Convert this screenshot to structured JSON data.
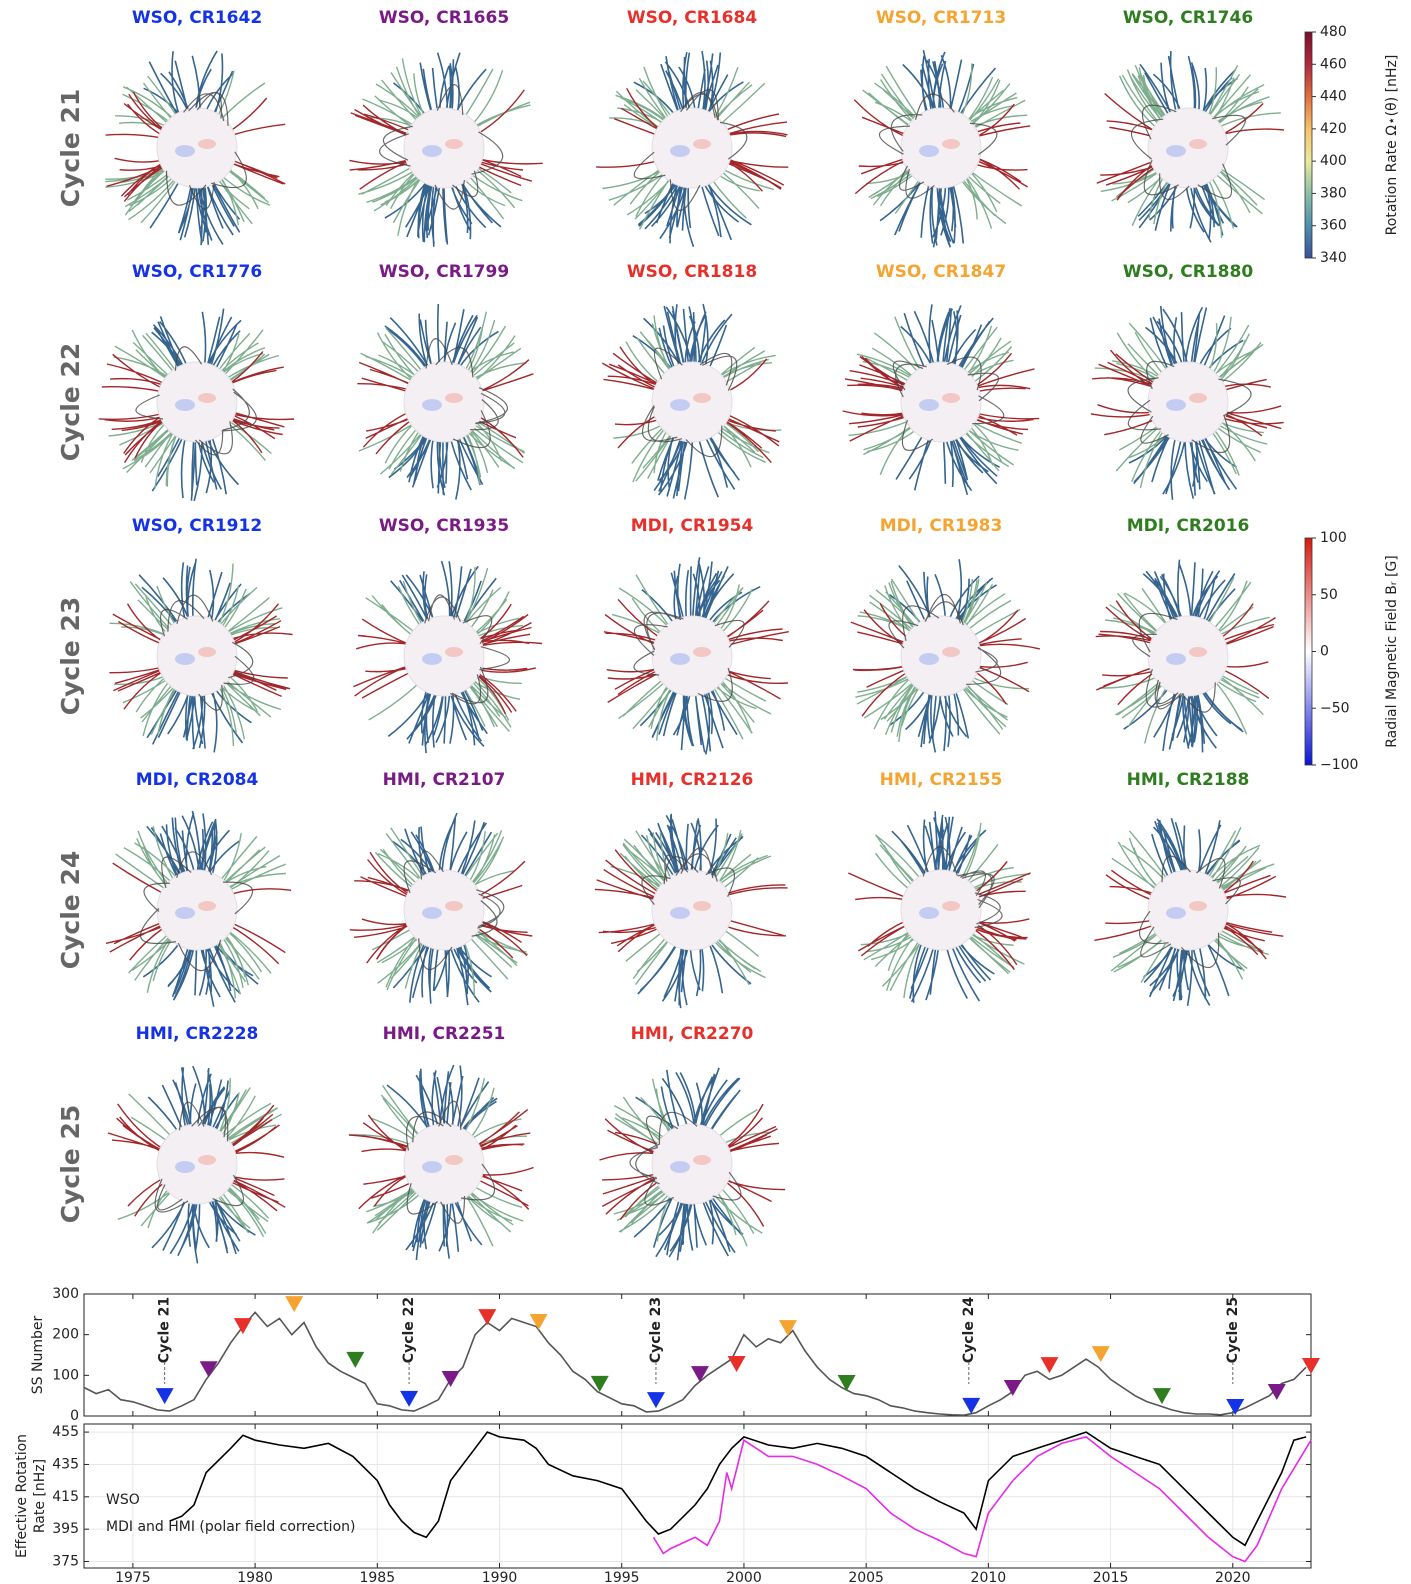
{
  "panels": [
    {
      "row_label": "Cycle 21",
      "items": [
        {
          "title": "WSO, CR1642",
          "color": "#1433e6"
        },
        {
          "title": "WSO, CR1665",
          "color": "#7a1a86"
        },
        {
          "title": "WSO, CR1684",
          "color": "#e8302a"
        },
        {
          "title": "WSO, CR1713",
          "color": "#f5a431"
        },
        {
          "title": "WSO, CR1746",
          "color": "#2e7d1e"
        }
      ]
    },
    {
      "row_label": "Cycle 22",
      "items": [
        {
          "title": "WSO, CR1776",
          "color": "#1433e6"
        },
        {
          "title": "WSO, CR1799",
          "color": "#7a1a86"
        },
        {
          "title": "WSO, CR1818",
          "color": "#e8302a"
        },
        {
          "title": "WSO, CR1847",
          "color": "#f5a431"
        },
        {
          "title": "WSO, CR1880",
          "color": "#2e7d1e"
        }
      ]
    },
    {
      "row_label": "Cycle 23",
      "items": [
        {
          "title": "WSO, CR1912",
          "color": "#1433e6"
        },
        {
          "title": "WSO, CR1935",
          "color": "#7a1a86"
        },
        {
          "title": "MDI, CR1954",
          "color": "#e8302a"
        },
        {
          "title": "MDI, CR1983",
          "color": "#f5a431"
        },
        {
          "title": "MDI, CR2016",
          "color": "#2e7d1e"
        }
      ]
    },
    {
      "row_label": "Cycle 24",
      "items": [
        {
          "title": "MDI, CR2084",
          "color": "#1433e6"
        },
        {
          "title": "HMI, CR2107",
          "color": "#7a1a86"
        },
        {
          "title": "HMI, CR2126",
          "color": "#e8302a"
        },
        {
          "title": "HMI, CR2155",
          "color": "#f5a431"
        },
        {
          "title": "HMI, CR2188",
          "color": "#2e7d1e"
        }
      ]
    },
    {
      "row_label": "Cycle 25",
      "items": [
        {
          "title": "HMI, CR2228",
          "color": "#1433e6"
        },
        {
          "title": "HMI, CR2251",
          "color": "#7a1a86"
        },
        {
          "title": "HMI, CR2270",
          "color": "#e8302a"
        }
      ]
    }
  ],
  "colorbars": [
    {
      "label": "Rotation Rate Ω⋆(θ) [nHz]",
      "lim": [
        340,
        480
      ],
      "ticks": [
        340,
        360,
        380,
        400,
        420,
        440,
        460,
        480
      ],
      "colors": [
        "#3a4f9c",
        "#4f8fae",
        "#8cc0a6",
        "#e9ea9e",
        "#f6c36a",
        "#e2703f",
        "#b3283b",
        "#7a0f2a"
      ]
    },
    {
      "label": "Radial Magnetic Field Bᵣ [G]",
      "lim": [
        -100,
        100
      ],
      "ticks": [
        {
          "value": -100,
          "label": "−100"
        },
        {
          "value": -50,
          "label": "−50"
        },
        0,
        50,
        100
      ],
      "colors": [
        "#0a14d8",
        "#ffffff",
        "#d81a10"
      ]
    }
  ],
  "chart_data": [
    {
      "type": "line",
      "ylabel": "SS Number",
      "color": "#555555",
      "xlim": [
        1973,
        2023.2
      ],
      "ylim": [
        0,
        300
      ],
      "yticks": [
        0,
        100,
        200,
        300
      ],
      "x": [
        1973,
        1973.5,
        1974,
        1974.5,
        1975,
        1975.5,
        1976,
        1976.5,
        1977,
        1977.5,
        1978,
        1978.5,
        1979,
        1979.5,
        1980,
        1980.5,
        1981,
        1981.5,
        1982,
        1982.5,
        1983,
        1983.5,
        1984,
        1984.5,
        1985,
        1985.5,
        1986,
        1986.5,
        1987,
        1987.5,
        1988,
        1988.5,
        1989,
        1989.5,
        1990,
        1990.5,
        1991,
        1991.5,
        1992,
        1992.5,
        1993,
        1993.5,
        1994,
        1994.5,
        1995,
        1995.5,
        1996,
        1996.5,
        1997,
        1997.5,
        1998,
        1998.5,
        1999,
        1999.5,
        2000,
        2000.5,
        2001,
        2001.5,
        2002,
        2002.5,
        2003,
        2003.5,
        2004,
        2004.5,
        2005,
        2005.5,
        2006,
        2006.5,
        2007,
        2007.5,
        2008,
        2008.5,
        2009,
        2009.5,
        2010,
        2010.5,
        2011,
        2011.5,
        2012,
        2012.5,
        2013,
        2013.5,
        2014,
        2014.5,
        2015,
        2015.5,
        2016,
        2016.5,
        2017,
        2017.5,
        2018,
        2018.5,
        2019,
        2019.5,
        2020,
        2020.5,
        2021,
        2021.5,
        2022,
        2022.5,
        2023
      ],
      "values": [
        70,
        55,
        65,
        40,
        35,
        25,
        15,
        12,
        25,
        40,
        90,
        130,
        180,
        220,
        255,
        220,
        240,
        200,
        230,
        170,
        130,
        110,
        95,
        80,
        30,
        25,
        15,
        12,
        25,
        40,
        90,
        120,
        200,
        230,
        210,
        240,
        230,
        220,
        180,
        150,
        110,
        90,
        60,
        45,
        30,
        25,
        10,
        12,
        25,
        40,
        75,
        100,
        120,
        140,
        200,
        170,
        190,
        180,
        210,
        160,
        120,
        90,
        70,
        55,
        50,
        40,
        25,
        20,
        12,
        8,
        5,
        3,
        2,
        8,
        25,
        40,
        60,
        100,
        110,
        90,
        100,
        120,
        140,
        120,
        90,
        70,
        50,
        35,
        25,
        15,
        8,
        5,
        5,
        3,
        8,
        20,
        35,
        50,
        80,
        90,
        120
      ],
      "markers": {
        "x": [
          1976.3,
          1978.1,
          1979.5,
          1981.6,
          1984.1,
          1986.3,
          1988.0,
          1989.5,
          1991.6,
          1994.1,
          1996.4,
          1998.2,
          1999.7,
          2001.8,
          2004.2,
          2009.3,
          2011.0,
          2012.5,
          2014.6,
          2017.1,
          2020.1,
          2021.8,
          2023.2
        ],
        "values": [
          49,
          115,
          221,
          275,
          138,
          42,
          91,
          243,
          231,
          79,
          39,
          103,
          128,
          216,
          81,
          25,
          69,
          125,
          152,
          49,
          22,
          59,
          123
        ],
        "colors": [
          "#1433e6",
          "#7a1a86",
          "#e8302a",
          "#f5a431",
          "#2e7d1e",
          "#1433e6",
          "#7a1a86",
          "#e8302a",
          "#f5a431",
          "#2e7d1e",
          "#1433e6",
          "#7a1a86",
          "#e8302a",
          "#f5a431",
          "#2e7d1e",
          "#1433e6",
          "#7a1a86",
          "#e8302a",
          "#f5a431",
          "#2e7d1e",
          "#1433e6",
          "#7a1a86",
          "#e8302a"
        ]
      },
      "annotations": [
        {
          "x": 1976.3,
          "label": "Cycle 21"
        },
        {
          "x": 1986.3,
          "label": "Cycle 22"
        },
        {
          "x": 1996.4,
          "label": "Cycle 23"
        },
        {
          "x": 2009.2,
          "label": "Cycle 24"
        },
        {
          "x": 2020.0,
          "label": "Cycle 25"
        }
      ]
    },
    {
      "type": "line",
      "ylabel": [
        "Effective Rotation",
        "Rate [nHz]"
      ],
      "xlim": [
        1973,
        2023.2
      ],
      "ylim": [
        371,
        460
      ],
      "xticks": [
        1975,
        1980,
        1985,
        1990,
        1995,
        2000,
        2005,
        2010,
        2015,
        2020
      ],
      "yticks": [
        375,
        395,
        415,
        435,
        455
      ],
      "grid": true,
      "series": [
        {
          "name": "WSO",
          "color": "#000000",
          "x": [
            1976.5,
            1977,
            1977.5,
            1978,
            1979,
            1979.5,
            1980,
            1981,
            1982,
            1983,
            1984,
            1985,
            1985.5,
            1986,
            1986.5,
            1987,
            1987.5,
            1988,
            1989,
            1989.5,
            1990,
            1991,
            1991.5,
            1992,
            1993,
            1994,
            1995,
            1995.5,
            1996,
            1996.5,
            1997,
            1998,
            1998.5,
            1999,
            1999.5,
            2000,
            2001,
            2002,
            2003,
            2004,
            2005,
            2006,
            2007,
            2008,
            2009,
            2009.5,
            2010,
            2011,
            2012,
            2013,
            2014,
            2015,
            2016,
            2017,
            2018,
            2019,
            2020,
            2020.5,
            2021,
            2022,
            2022.5,
            2023
          ],
          "values": [
            400,
            403,
            410,
            430,
            445,
            453,
            450,
            447,
            445,
            448,
            440,
            425,
            410,
            400,
            393,
            390,
            400,
            425,
            445,
            455,
            452,
            450,
            445,
            435,
            428,
            425,
            420,
            410,
            400,
            392,
            395,
            410,
            420,
            435,
            445,
            452,
            447,
            445,
            448,
            445,
            440,
            430,
            420,
            412,
            405,
            395,
            425,
            440,
            445,
            450,
            455,
            445,
            440,
            435,
            420,
            405,
            390,
            385,
            400,
            430,
            450,
            452
          ]
        },
        {
          "name": "MDI and HMI (polar field correction)",
          "color": "#e829e8",
          "x": [
            1996.3,
            1996.7,
            1997,
            1998,
            1998.5,
            1999,
            1999.3,
            1999.5,
            2000,
            2001,
            2002,
            2003,
            2004,
            2005,
            2006,
            2007,
            2008,
            2009,
            2009.5,
            2010,
            2011,
            2012,
            2013,
            2014,
            2015,
            2016,
            2017,
            2018,
            2019,
            2020,
            2020.5,
            2021,
            2022,
            2023,
            2023.2
          ],
          "values": [
            390,
            380,
            383,
            390,
            385,
            400,
            430,
            420,
            450,
            440,
            440,
            435,
            428,
            420,
            405,
            395,
            388,
            380,
            378,
            405,
            425,
            440,
            448,
            452,
            440,
            430,
            420,
            405,
            390,
            378,
            375,
            385,
            420,
            445,
            450
          ]
        }
      ]
    }
  ]
}
